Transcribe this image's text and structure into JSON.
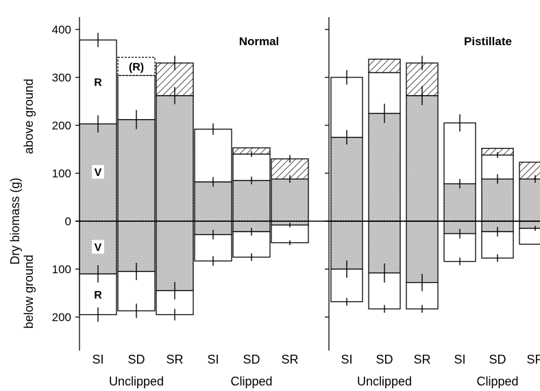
{
  "colors": {
    "vegetative_fill": "#cfcfcf",
    "reproductive_fill": "#ffffff",
    "stroke": "#000000"
  },
  "y_axis": {
    "title_above": "above ground",
    "title_main": "Dry biomass (g)",
    "title_below": "below ground",
    "above_ticks": [
      "0",
      "100",
      "200",
      "300",
      "400"
    ],
    "below_ticks": [
      "100",
      "200"
    ]
  },
  "chart_data": [
    {
      "type": "bar",
      "title": "Normal",
      "stacked": true,
      "categories": [
        "SI",
        "SD",
        "SR",
        "SI",
        "SD",
        "SR"
      ],
      "groups": [
        {
          "label": "Unclipped",
          "span": [
            0,
            2
          ]
        },
        {
          "label": "Clipped",
          "span": [
            3,
            5
          ]
        }
      ],
      "ylim": [
        -250,
        400
      ],
      "above_ground": [
        {
          "veg": 203,
          "repro": 175,
          "repro_pattern": "open",
          "veg_err": 18,
          "total_err": 15,
          "veg_label": "V",
          "repro_label": "R"
        },
        {
          "veg": 212,
          "repro": 92,
          "repro_pattern": "open",
          "veg_err": 20,
          "total_err": 0,
          "extra_dashed": 38,
          "extra_label": "(R)"
        },
        {
          "veg": 262,
          "repro": 68,
          "repro_pattern": "hatched",
          "veg_err": 18,
          "total_err": 15
        },
        {
          "veg": 82,
          "repro": 110,
          "repro_pattern": "open",
          "veg_err": 10,
          "total_err": 12
        },
        {
          "veg": 85,
          "repro": 55,
          "repro_pattern": "open",
          "veg_err": 8,
          "total_err": 6,
          "extra_hatched": 13
        },
        {
          "veg": 88,
          "repro": 42,
          "repro_pattern": "hatched",
          "veg_err": 8,
          "total_err": 8
        }
      ],
      "below_ground": [
        {
          "veg": 110,
          "repro": 85,
          "veg_err": 18,
          "total_err": 15,
          "veg_label": "V",
          "repro_label": "R"
        },
        {
          "veg": 105,
          "repro": 82,
          "veg_err": 18,
          "total_err": 15
        },
        {
          "veg": 145,
          "repro": 50,
          "veg_err": 18,
          "total_err": 12
        },
        {
          "veg": 28,
          "repro": 55,
          "veg_err": 10,
          "total_err": 10
        },
        {
          "veg": 22,
          "repro": 53,
          "veg_err": 8,
          "total_err": 8
        },
        {
          "veg": 8,
          "repro": 37,
          "veg_err": 5,
          "total_err": 5
        }
      ]
    },
    {
      "type": "bar",
      "title": "Pistillate",
      "stacked": true,
      "categories": [
        "SI",
        "SD",
        "SR",
        "SI",
        "SD",
        "SR"
      ],
      "groups": [
        {
          "label": "Unclipped",
          "span": [
            0,
            2
          ]
        },
        {
          "label": "Clipped",
          "span": [
            3,
            5
          ]
        }
      ],
      "ylim": [
        -250,
        400
      ],
      "above_ground": [
        {
          "veg": 175,
          "repro": 125,
          "repro_pattern": "open",
          "veg_err": 15,
          "total_err": 15
        },
        {
          "veg": 225,
          "repro": 85,
          "repro_pattern": "open",
          "veg_err": 20,
          "total_err": 0,
          "extra_hatched": 28
        },
        {
          "veg": 262,
          "repro": 68,
          "repro_pattern": "hatched",
          "veg_err": 20,
          "total_err": 15
        },
        {
          "veg": 78,
          "repro": 127,
          "repro_pattern": "open",
          "veg_err": 10,
          "total_err": 18
        },
        {
          "veg": 88,
          "repro": 50,
          "repro_pattern": "open",
          "veg_err": 10,
          "total_err": 6,
          "extra_hatched": 14
        },
        {
          "veg": 88,
          "repro": 35,
          "repro_pattern": "hatched",
          "veg_err": 8,
          "total_err": 0
        }
      ],
      "below_ground": [
        {
          "veg": 100,
          "repro": 68,
          "veg_err": 18,
          "total_err": 8
        },
        {
          "veg": 108,
          "repro": 75,
          "veg_err": 20,
          "total_err": 8
        },
        {
          "veg": 128,
          "repro": 55,
          "veg_err": 18,
          "total_err": 8
        },
        {
          "veg": 26,
          "repro": 58,
          "veg_err": 10,
          "total_err": 8
        },
        {
          "veg": 22,
          "repro": 55,
          "veg_err": 10,
          "total_err": 8
        },
        {
          "veg": 15,
          "repro": 33,
          "veg_err": 5,
          "total_err": 0
        }
      ]
    }
  ]
}
